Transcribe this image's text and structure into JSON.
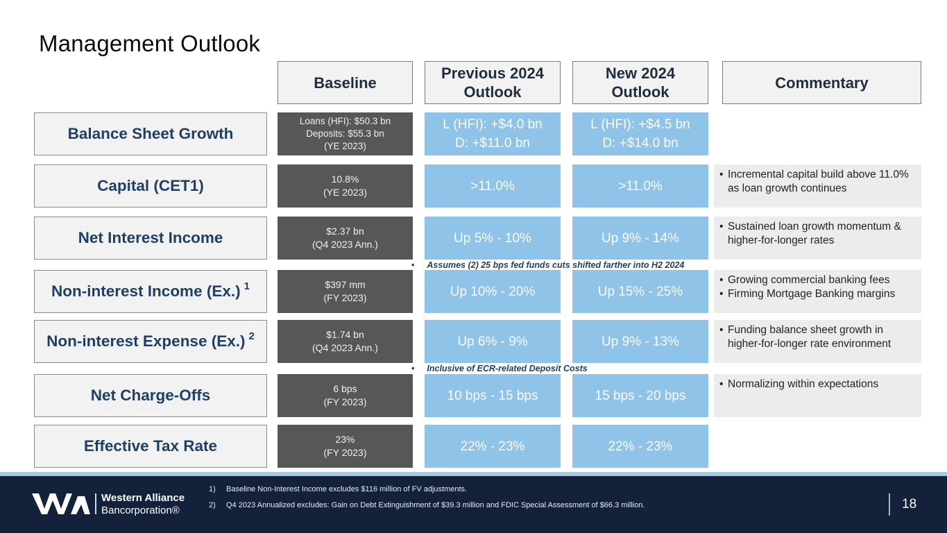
{
  "title": "Management Outlook",
  "headers": {
    "baseline": "Baseline",
    "previous": [
      "Previous 2024",
      "Outlook"
    ],
    "new": [
      "New 2024",
      "Outlook"
    ],
    "commentary": "Commentary"
  },
  "rows": [
    {
      "label": "Balance Sheet Growth",
      "baseline": [
        "Loans (HFI): $50.3 bn",
        "Deposits: $55.3 bn",
        "(YE 2023)"
      ],
      "previous": [
        "L (HFI): +$4.0 bn",
        "D: +$11.0 bn"
      ],
      "new": [
        "L (HFI): +$4.5 bn",
        "D: +$14.0 bn"
      ],
      "commentary": []
    },
    {
      "label": "Capital (CET1)",
      "baseline": [
        "10.8%",
        "(YE 2023)"
      ],
      "previous": [
        ">11.0%"
      ],
      "new": [
        ">11.0%"
      ],
      "commentary": [
        "Incremental capital build above 11.0% as loan growth continues"
      ]
    },
    {
      "label": "Net Interest Income",
      "baseline": [
        "$2.37 bn",
        "(Q4 2023 Ann.)"
      ],
      "previous": [
        "Up 5% - 10%"
      ],
      "new": [
        "Up 9% - 14%"
      ],
      "commentary": [
        "Sustained loan growth momentum & higher-for-longer rates"
      ]
    },
    {
      "label": "Non-interest Income (Ex.)",
      "sup": "1",
      "baseline": [
        "$397 mm",
        "(FY 2023)"
      ],
      "previous": [
        "Up 10% - 20%"
      ],
      "new": [
        "Up 15% - 25%"
      ],
      "commentary": [
        "Growing commercial banking fees",
        "Firming Mortgage Banking margins"
      ]
    },
    {
      "label": "Non-interest Expense (Ex.)",
      "sup": "2",
      "baseline": [
        "$1.74 bn",
        "(Q4 2023 Ann.)"
      ],
      "previous": [
        "Up 6% - 9%"
      ],
      "new": [
        "Up 9% - 13%"
      ],
      "commentary": [
        "Funding balance sheet growth in higher-for-longer rate environment"
      ]
    },
    {
      "label": "Net Charge-Offs",
      "baseline": [
        "6 bps",
        "(FY 2023)"
      ],
      "previous": [
        "10 bps - 15 bps"
      ],
      "new": [
        "15 bps - 20 bps"
      ],
      "commentary": [
        "Normalizing within expectations"
      ]
    },
    {
      "label": "Effective Tax Rate",
      "baseline": [
        "23%",
        "(FY 2023)"
      ],
      "previous": [
        "22% - 23%"
      ],
      "new": [
        "22% - 23%"
      ],
      "commentary": []
    }
  ],
  "notes": {
    "nii": "Assumes (2) 25 bps fed funds cuts shifted farther into H2 2024",
    "nie": "Inclusive of ECR-related Deposit Costs",
    "bullet": "•"
  },
  "footer": {
    "logo_name": "Western Alliance",
    "logo_sub": "Bancorporation®",
    "footnotes": [
      {
        "num": "1)",
        "text": "Baseline Non-Interest Income excludes $116 million of FV adjustments."
      },
      {
        "num": "2)",
        "text": "Q4 2023 Annualized excludes: Gain on Debt Extinguishment of $39.3 million and FDIC Special Assessment of $66.3 million."
      }
    ],
    "page_number": "18"
  },
  "colors": {
    "navy": "#13213a",
    "accent_blue": "#8fc3e8",
    "label_blue": "#1e3f66",
    "baseline_gray": "#575757"
  }
}
